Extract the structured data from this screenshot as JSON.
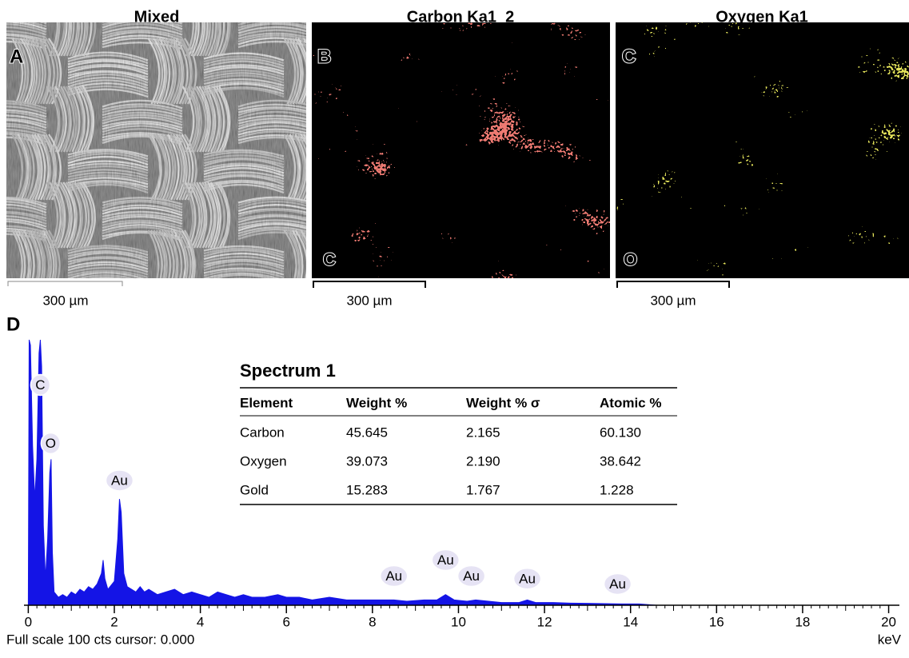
{
  "panels": [
    {
      "letter": "A",
      "title": "Mixed",
      "scale_bar": "300 µm"
    },
    {
      "letter": "B",
      "title": "Carbon Ka1_2",
      "element": "C",
      "scale_bar": "300 µm"
    },
    {
      "letter": "C",
      "title": "Oxygen Ka1",
      "element": "O",
      "scale_bar": "300 µm"
    }
  ],
  "chart_data": {
    "type": "area",
    "panel_label": "D",
    "color": "#1414e6",
    "x": [
      0,
      0.02,
      0.05,
      0.1,
      0.15,
      0.2,
      0.25,
      0.28,
      0.31,
      0.35,
      0.4,
      0.45,
      0.5,
      0.53,
      0.56,
      0.6,
      0.65,
      0.7,
      0.8,
      0.9,
      1.0,
      1.1,
      1.2,
      1.3,
      1.4,
      1.5,
      1.6,
      1.7,
      1.74,
      1.78,
      1.85,
      1.9,
      2.0,
      2.08,
      2.12,
      2.16,
      2.22,
      2.3,
      2.4,
      2.5,
      2.6,
      2.7,
      2.8,
      3.0,
      3.2,
      3.4,
      3.6,
      3.8,
      4.0,
      4.2,
      4.4,
      4.6,
      4.8,
      5.0,
      5.2,
      5.5,
      5.8,
      6.0,
      6.3,
      6.6,
      7.0,
      7.4,
      7.8,
      8.2,
      8.5,
      8.8,
      9.2,
      9.5,
      9.7,
      9.9,
      10.2,
      10.4,
      10.7,
      11.0,
      11.4,
      11.6,
      11.8,
      12.2,
      12.6,
      13.0,
      13.4,
      13.8,
      14.2,
      14.6
    ],
    "values": [
      0,
      100,
      98,
      60,
      40,
      55,
      95,
      100,
      90,
      30,
      10,
      25,
      50,
      55,
      20,
      5,
      4,
      3,
      4,
      3,
      5,
      4,
      6,
      5,
      7,
      6,
      8,
      12,
      17,
      10,
      6,
      7,
      9,
      25,
      40,
      35,
      12,
      7,
      6,
      5,
      7,
      5,
      6,
      4,
      5,
      6,
      4,
      5,
      4,
      3,
      5,
      4,
      3,
      4,
      3,
      3,
      4,
      3,
      3,
      2,
      3,
      2,
      2,
      2,
      2,
      1.5,
      2,
      2,
      4,
      2,
      1.5,
      2,
      1.5,
      1,
      1,
      2,
      1,
      1,
      0.8,
      0.7,
      0.6,
      0.5,
      0.5,
      0
    ],
    "xlim": [
      -0.1,
      20.25
    ],
    "ylim": [
      0,
      100
    ],
    "xticks": [
      0,
      2,
      4,
      6,
      8,
      10,
      12,
      14,
      16,
      18,
      20
    ],
    "x_label": "keV",
    "footer": "Full scale 100 cts cursor: 0.000",
    "annotations": [
      {
        "text": "C",
        "x": 0.28,
        "y": 83
      },
      {
        "text": "O",
        "x": 0.52,
        "y": 61
      },
      {
        "text": "Au",
        "x": 2.12,
        "y": 47
      },
      {
        "text": "Au",
        "x": 8.5,
        "y": 11
      },
      {
        "text": "Au",
        "x": 9.7,
        "y": 17
      },
      {
        "text": "Au",
        "x": 10.3,
        "y": 11
      },
      {
        "text": "Au",
        "x": 11.6,
        "y": 10
      },
      {
        "text": "Au",
        "x": 13.7,
        "y": 8
      }
    ]
  },
  "table": {
    "title": "Spectrum 1",
    "columns": [
      "Element",
      "Weight %",
      "Weight % σ",
      "Atomic %"
    ],
    "rows": [
      [
        "Carbon",
        "45.645",
        "2.165",
        "60.130"
      ],
      [
        "Oxygen",
        "39.073",
        "2.190",
        "38.642"
      ],
      [
        "Gold",
        "15.283",
        "1.767",
        "1.228"
      ]
    ]
  }
}
